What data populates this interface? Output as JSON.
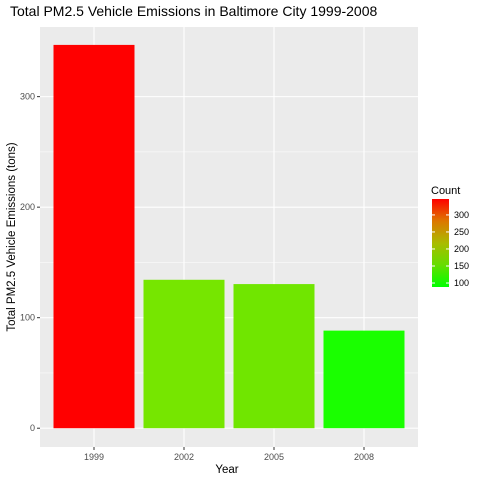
{
  "chart_data": {
    "type": "bar",
    "title": "Total PM2.5 Vehicle Emissions in Baltimore City 1999-2008",
    "xlabel": "Year",
    "ylabel": "Total PM2.5 Vehicle Emissions (tons)",
    "categories": [
      "1999",
      "2002",
      "2005",
      "2008"
    ],
    "values": [
      346.8,
      134.3,
      130.4,
      88.3
    ],
    "ylim": [
      -17,
      363
    ],
    "yticks": [
      0,
      100,
      200,
      300
    ],
    "ytick_labels": [
      "0",
      "100",
      "200",
      "300"
    ],
    "grid": true,
    "legend": {
      "title": "Count",
      "position": "right",
      "ticks": [
        100,
        150,
        200,
        250,
        300
      ],
      "tick_labels": [
        "100",
        "150",
        "200",
        "250",
        "300"
      ],
      "range": [
        88.3,
        346.8
      ],
      "low_color": "#00ff00",
      "high_color": "#ff0000"
    },
    "bar_colors": [
      "#ff0000",
      "#76e600",
      "#70e600",
      "#1aff00"
    ],
    "panel_background": "#ebebeb",
    "grid_color": "#ffffff"
  }
}
